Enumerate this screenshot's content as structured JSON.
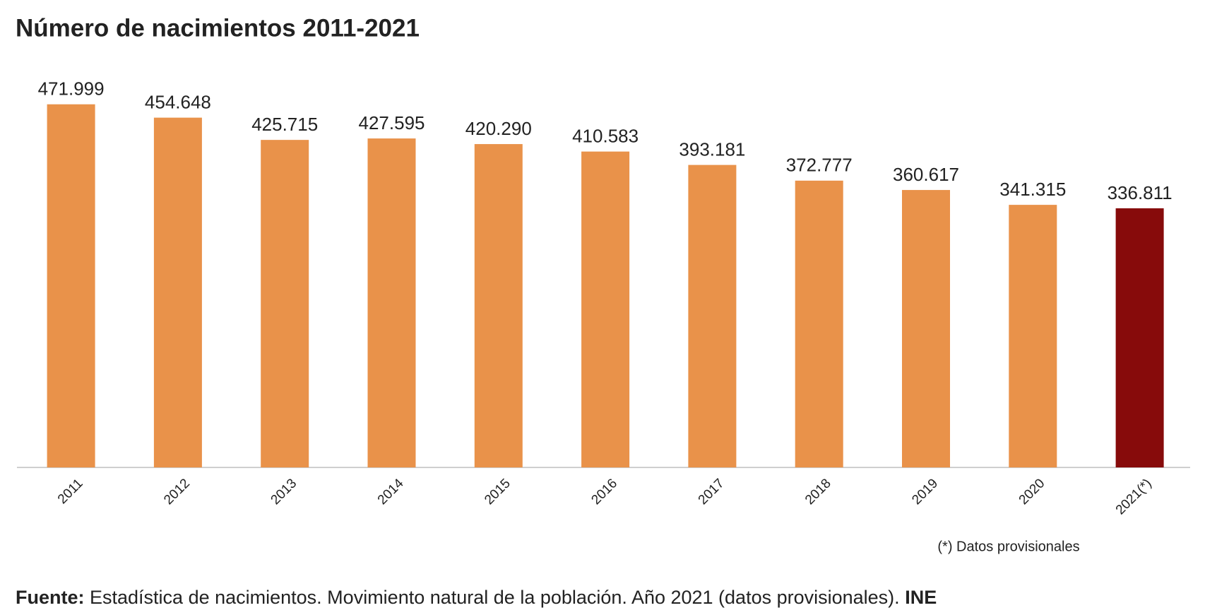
{
  "chart_data": {
    "type": "bar",
    "title": "Número de nacimientos 2011-2021",
    "categories": [
      "2011",
      "2012",
      "2013",
      "2014",
      "2015",
      "2016",
      "2017",
      "2018",
      "2019",
      "2020",
      "2021(*)"
    ],
    "values": [
      471999,
      454648,
      425715,
      427595,
      420290,
      410583,
      393181,
      372777,
      360617,
      341315,
      336811
    ],
    "value_labels": [
      "471.999",
      "454.648",
      "425.715",
      "427.595",
      "420.290",
      "410.583",
      "393.181",
      "372.777",
      "360.617",
      "341.315",
      "336.811"
    ],
    "colors": [
      "#e9924a",
      "#e9924a",
      "#e9924a",
      "#e9924a",
      "#e9924a",
      "#e9924a",
      "#e9924a",
      "#e9924a",
      "#e9924a",
      "#e9924a",
      "#870b0b"
    ],
    "ylim": [
      0,
      480000
    ],
    "note": "(*) Datos provisionales",
    "source": {
      "label": "Fuente:",
      "text": "Estadística de nacimientos. Movimiento natural de la población. Año 2021 (datos provisionales).",
      "org": "INE"
    }
  }
}
